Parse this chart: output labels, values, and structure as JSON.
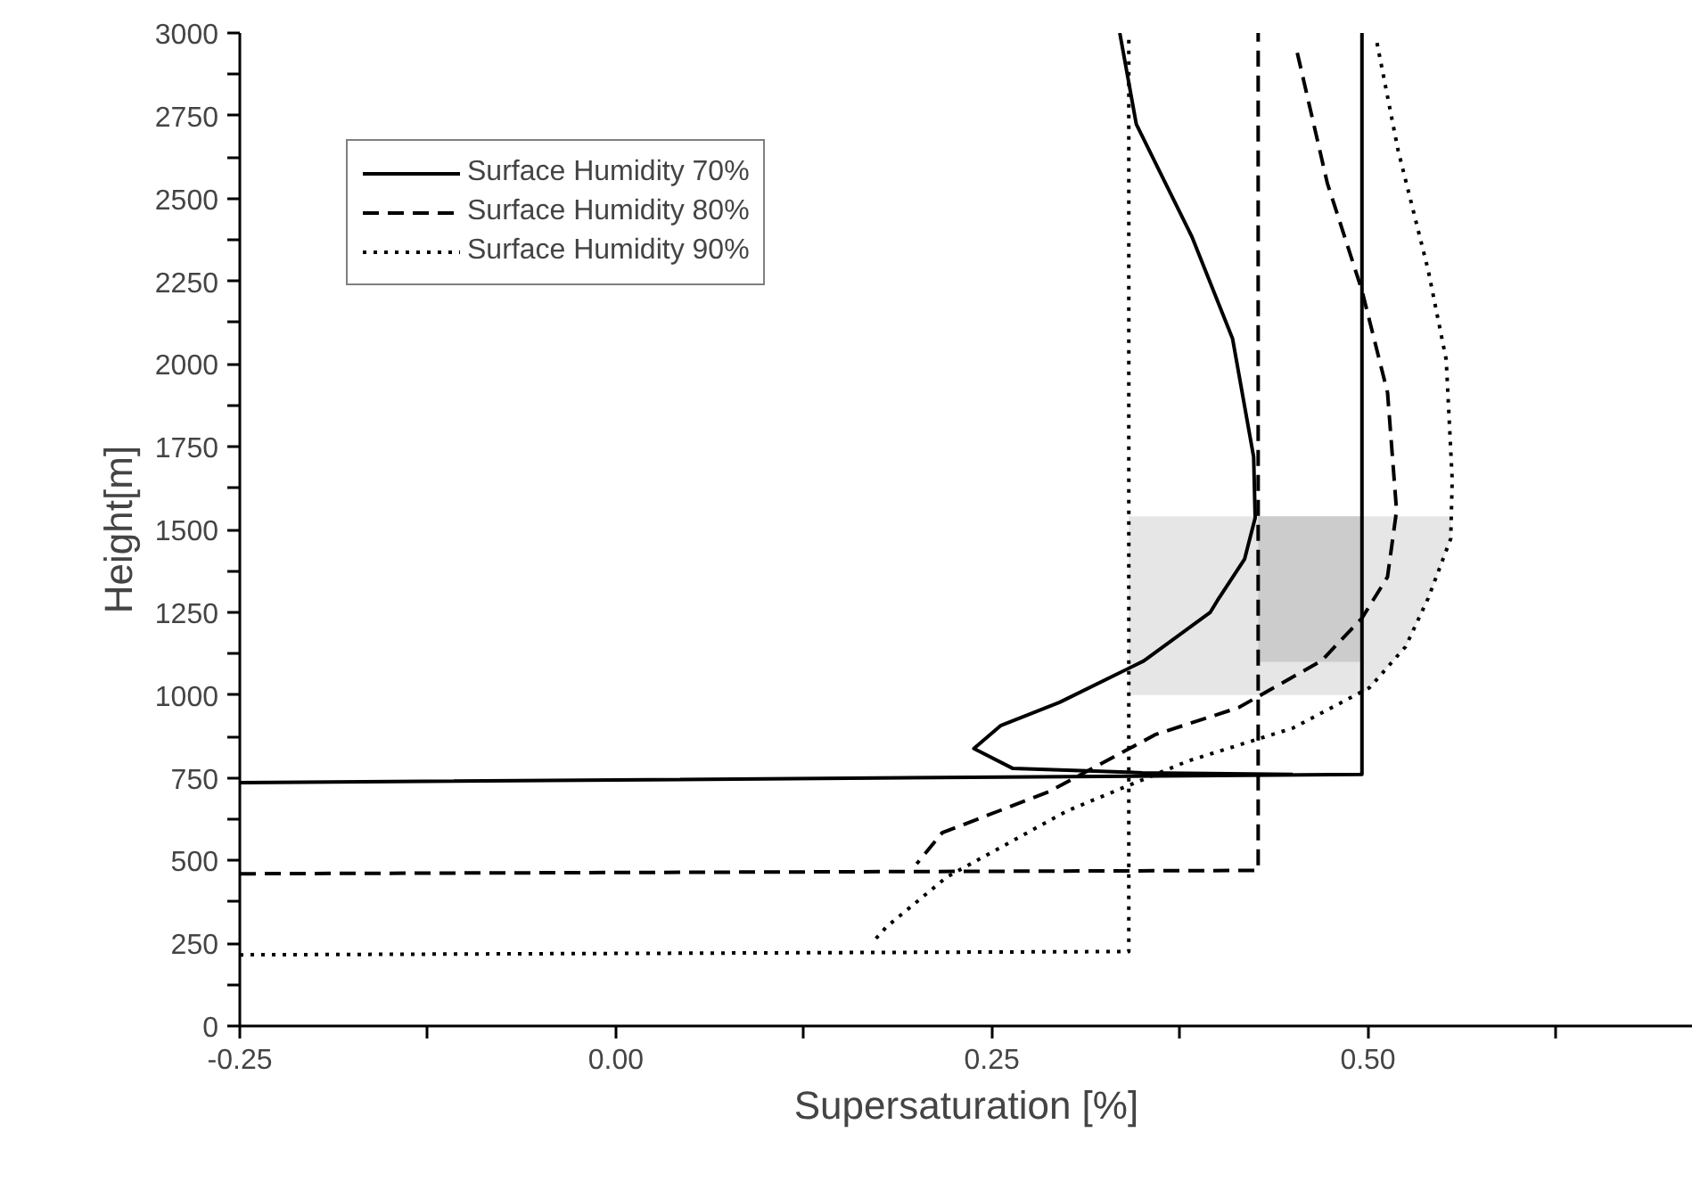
{
  "chart_data": {
    "type": "line",
    "xlabel": "Supersaturation [%]",
    "ylabel": "Height[m]",
    "xlim": [
      -0.25,
      0.716
    ],
    "ylim": [
      0,
      3000
    ],
    "xticks": [
      {
        "value": -0.25,
        "label": "-0.25"
      },
      {
        "value": -0.125,
        "label": null
      },
      {
        "value": 0,
        "label": "0.00"
      },
      {
        "value": 0.125,
        "label": null
      },
      {
        "value": 0.25,
        "label": "0.25"
      },
      {
        "value": 0.375,
        "label": null
      },
      {
        "value": 0.5,
        "label": "0.50"
      },
      {
        "value": 0.625,
        "label": null
      }
    ],
    "yticks": [
      0,
      {
        "value": 125,
        "label": null
      },
      250,
      {
        "value": 375,
        "label": null
      },
      500,
      {
        "value": 625,
        "label": null
      },
      750,
      {
        "value": 875,
        "label": null
      },
      1000,
      {
        "value": 1125,
        "label": null
      },
      1250,
      {
        "value": 1375,
        "label": null
      },
      1500,
      {
        "value": 1625,
        "label": null
      },
      1750,
      {
        "value": 1875,
        "label": null
      },
      2000,
      {
        "value": 2125,
        "label": null
      },
      2250,
      {
        "value": 2375,
        "label": null
      },
      2500,
      {
        "value": 2625,
        "label": null
      },
      2750,
      {
        "value": 2875,
        "label": null
      },
      3000
    ],
    "grid": false,
    "legend": "top left",
    "series": [
      {
        "name": "Surface Humidity 70%",
        "color": "#000000",
        "line_style": "solid",
        "x": [
          -0.25,
          0.496,
          0.496
        ],
        "values": [
          735,
          760,
          3000
        ]
      },
      {
        "name": "Surface Humidity 80%",
        "color": "#000000",
        "line_style": "dashed",
        "x": [
          -0.25,
          0.427,
          0.427
        ],
        "values": [
          460,
          470,
          3000
        ]
      },
      {
        "name": "Surface Humidity 90%",
        "color": "#000000",
        "line_style": "dotted",
        "x": [
          -0.25,
          0.341,
          0.341
        ],
        "values": [
          215,
          225,
          3000
        ]
      },
      {
        "color": "#000000",
        "line_style": "solid",
        "x": [
          0.335,
          0.346,
          0.383,
          0.41,
          0.424,
          0.425,
          0.418,
          0.4,
          0.395,
          0.351,
          0.295,
          0.256,
          0.238,
          0.264,
          0.35,
          0.45
        ],
        "values": [
          3000,
          2724,
          2384,
          2076,
          1719,
          1535,
          1411,
          1286,
          1249,
          1103,
          978,
          908,
          838,
          778,
          765,
          760
        ]
      },
      {
        "color": "#000000",
        "line_style": "dashed",
        "x": [
          0.453,
          0.473,
          0.496,
          0.513,
          0.519,
          0.513,
          0.496,
          0.469,
          0.414,
          0.359,
          0.288,
          0.217,
          0.2
        ],
        "values": [
          2940,
          2546,
          2222,
          1914,
          1557,
          1357,
          1232,
          1103,
          962,
          881,
          708,
          584,
          490
        ]
      },
      {
        "color": "#000000",
        "line_style": "dotted",
        "x": [
          0.506,
          0.52,
          0.54,
          0.552,
          0.556,
          0.555,
          0.54,
          0.525,
          0.501,
          0.45,
          0.38,
          0.3,
          0.22,
          0.18,
          0.17
        ],
        "values": [
          2970,
          2646,
          2284,
          2013,
          1650,
          1472,
          1292,
          1146,
          1022,
          900,
          800,
          650,
          450,
          300,
          250
        ]
      }
    ],
    "bands": [
      {
        "axis": "y",
        "from": 1000,
        "to": 1540,
        "color": "#e6e6e6"
      },
      {
        "axis": "y",
        "from": 1100,
        "to": 1540,
        "color": "#cccccc"
      }
    ]
  }
}
